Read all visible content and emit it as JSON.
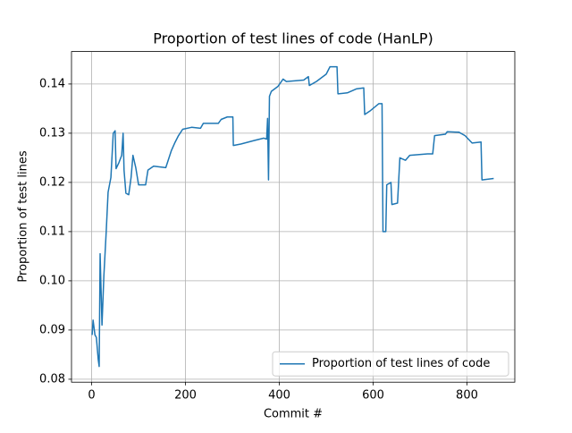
{
  "chart_data": {
    "type": "line",
    "title": "Proportion of test lines of code (HanLP)",
    "xlabel": "Commit #",
    "ylabel": "Proportion of test lines",
    "xlim": [
      -43,
      902
    ],
    "ylim": [
      0.0794,
      0.1466
    ],
    "xticks": [
      0,
      200,
      400,
      600,
      800
    ],
    "yticks": [
      0.08,
      0.09,
      {
        "value": 0.1,
        "label": "0.10"
      },
      0.11,
      0.12,
      0.13,
      0.14
    ],
    "grid": true,
    "legend": "lower right",
    "series": [
      {
        "name": "Proportion of test lines of code",
        "color": "#1f77b4",
        "x": [
          1,
          3,
          7,
          10,
          14,
          16,
          18,
          22,
          26,
          31,
          35,
          41,
          46,
          50,
          52,
          58,
          64,
          67,
          69,
          73,
          79,
          84,
          88,
          94,
          100,
          115,
          120,
          132,
          158,
          170,
          177,
          185,
          194,
          213,
          232,
          238,
          270,
          276,
          289,
          301,
          302,
          318,
          346,
          367,
          373,
          375,
          377,
          379,
          383,
          397,
          408,
          415,
          452,
          462,
          464,
          479,
          500,
          508,
          523,
          525,
          545,
          564,
          580,
          582,
          593,
          612,
          619,
          621,
          627,
          629,
          638,
          640,
          652,
          657,
          669,
          678,
          716,
          727,
          731,
          754,
          758,
          783,
          796,
          811,
          830,
          832,
          857
        ],
        "values": [
          0.089,
          0.092,
          0.089,
          0.0885,
          0.084,
          0.0826,
          0.1055,
          0.091,
          0.101,
          0.11,
          0.118,
          0.121,
          0.13,
          0.1305,
          0.1228,
          0.124,
          0.1255,
          0.13,
          0.1225,
          0.1178,
          0.1175,
          0.121,
          0.1255,
          0.123,
          0.1195,
          0.1195,
          0.1225,
          0.1233,
          0.123,
          0.1265,
          0.128,
          0.1295,
          0.1308,
          0.1312,
          0.131,
          0.132,
          0.132,
          0.1328,
          0.1333,
          0.1333,
          0.1275,
          0.1278,
          0.1285,
          0.129,
          0.1288,
          0.133,
          0.1205,
          0.1375,
          0.1385,
          0.1395,
          0.141,
          0.1405,
          0.1408,
          0.1415,
          0.1397,
          0.1405,
          0.142,
          0.1435,
          0.1435,
          0.138,
          0.1382,
          0.139,
          0.1392,
          0.1338,
          0.1345,
          0.136,
          0.136,
          0.11,
          0.11,
          0.1195,
          0.12,
          0.1155,
          0.1158,
          0.125,
          0.1245,
          0.1255,
          0.1258,
          0.1258,
          0.1295,
          0.1298,
          0.1303,
          0.1302,
          0.1295,
          0.128,
          0.1282,
          0.1205,
          0.1208
        ]
      }
    ]
  }
}
